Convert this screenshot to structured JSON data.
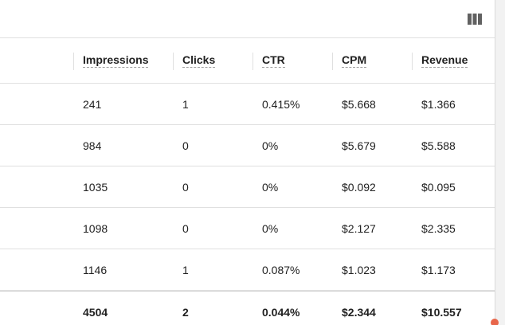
{
  "toolbar": {
    "columns_icon": "view-column-icon"
  },
  "table": {
    "headers": [
      "Impressions",
      "Clicks",
      "CTR",
      "CPM",
      "Revenue"
    ],
    "rows": [
      [
        "241",
        "1",
        "0.415%",
        "$5.668",
        "$1.366"
      ],
      [
        "984",
        "0",
        "0%",
        "$5.679",
        "$5.588"
      ],
      [
        "1035",
        "0",
        "0%",
        "$0.092",
        "$0.095"
      ],
      [
        "1098",
        "0",
        "0%",
        "$2.127",
        "$2.335"
      ],
      [
        "1146",
        "1",
        "0.087%",
        "$1.023",
        "$1.173"
      ]
    ],
    "totals": [
      "4504",
      "2",
      "0.044%",
      "$2.344",
      "$10.557"
    ]
  },
  "colors": {
    "border": "#e0e0e0",
    "text": "#212121",
    "icon": "#616161"
  }
}
